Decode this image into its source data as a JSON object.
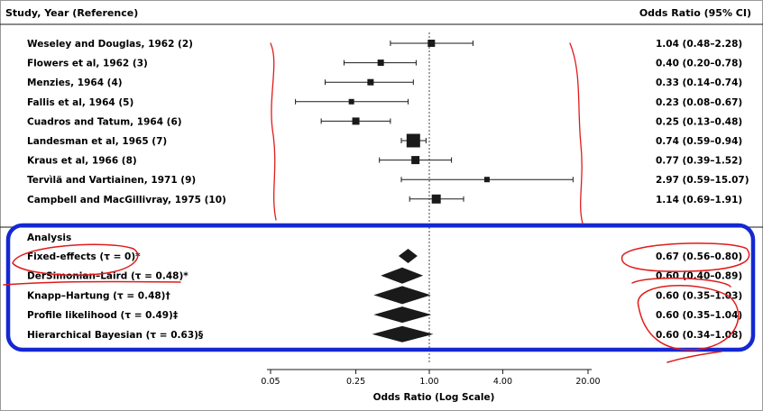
{
  "chart_data": {
    "type": "forest",
    "header_left": "Study, Year (Reference)",
    "header_right": "Odds Ratio (95% CI)",
    "xlabel": "Odds Ratio (Log Scale)",
    "xscale": "log",
    "xlim": [
      0.05,
      20
    ],
    "xticks": [
      0.05,
      0.25,
      1,
      4,
      20
    ],
    "xtick_labels": [
      "0.05",
      "0.25",
      "1.00",
      "4.00",
      "20.00"
    ],
    "reference_line": 1,
    "studies": [
      {
        "label": "Weseley and Douglas, 1962 (2)",
        "or": 1.04,
        "lo": 0.48,
        "hi": 2.28,
        "ci_text": "1.04 (0.48–2.28)"
      },
      {
        "label": "Flowers et al, 1962 (3)",
        "or": 0.4,
        "lo": 0.2,
        "hi": 0.78,
        "ci_text": "0.40 (0.20–0.78)"
      },
      {
        "label": "Menzies, 1964 (4)",
        "or": 0.33,
        "lo": 0.14,
        "hi": 0.74,
        "ci_text": "0.33 (0.14–0.74)"
      },
      {
        "label": "Fallis et al, 1964 (5)",
        "or": 0.23,
        "lo": 0.08,
        "hi": 0.67,
        "ci_text": "0.23 (0.08–0.67)"
      },
      {
        "label": "Cuadros and Tatum, 1964 (6)",
        "or": 0.25,
        "lo": 0.13,
        "hi": 0.48,
        "ci_text": "0.25 (0.13–0.48)"
      },
      {
        "label": "Landesman et al, 1965 (7)",
        "or": 0.74,
        "lo": 0.59,
        "hi": 0.94,
        "ci_text": "0.74 (0.59–0.94)"
      },
      {
        "label": "Kraus et al, 1966 (8)",
        "or": 0.77,
        "lo": 0.39,
        "hi": 1.52,
        "ci_text": "0.77 (0.39–1.52)"
      },
      {
        "label": "Tervìlä and Vartiainen, 1971 (9)",
        "or": 2.97,
        "lo": 0.59,
        "hi": 15.07,
        "ci_text": "2.97 (0.59–15.07)"
      },
      {
        "label": "Campbell and MacGillivray, 1975 (10)",
        "or": 1.14,
        "lo": 0.69,
        "hi": 1.91,
        "ci_text": "1.14 (0.69–1.91)"
      }
    ],
    "analysis_header": "Analysis",
    "analyses": [
      {
        "label": "Fixed-effects (τ = 0)*",
        "or": 0.67,
        "lo": 0.56,
        "hi": 0.8,
        "ci_text": "0.67 (0.56–0.80)"
      },
      {
        "label": "DerSimonian–Laird (τ = 0.48)*",
        "or": 0.6,
        "lo": 0.4,
        "hi": 0.89,
        "ci_text": "0.60 (0.40–0.89)"
      },
      {
        "label": "Knapp–Hartung (τ = 0.48)†",
        "or": 0.6,
        "lo": 0.35,
        "hi": 1.03,
        "ci_text": "0.60 (0.35–1.03)"
      },
      {
        "label": "Profile likelihood (τ = 0.49)‡",
        "or": 0.6,
        "lo": 0.35,
        "hi": 1.04,
        "ci_text": "0.60 (0.35–1.04)"
      },
      {
        "label": "Hierarchical Bayesian (τ = 0.63)§",
        "or": 0.6,
        "lo": 0.34,
        "hi": 1.08,
        "ci_text": "0.60 (0.34–1.08)"
      }
    ],
    "colors": {
      "ink": "#1a1a1a",
      "highlight_box": "#1428d2",
      "annotation": "#e11b1b"
    }
  }
}
